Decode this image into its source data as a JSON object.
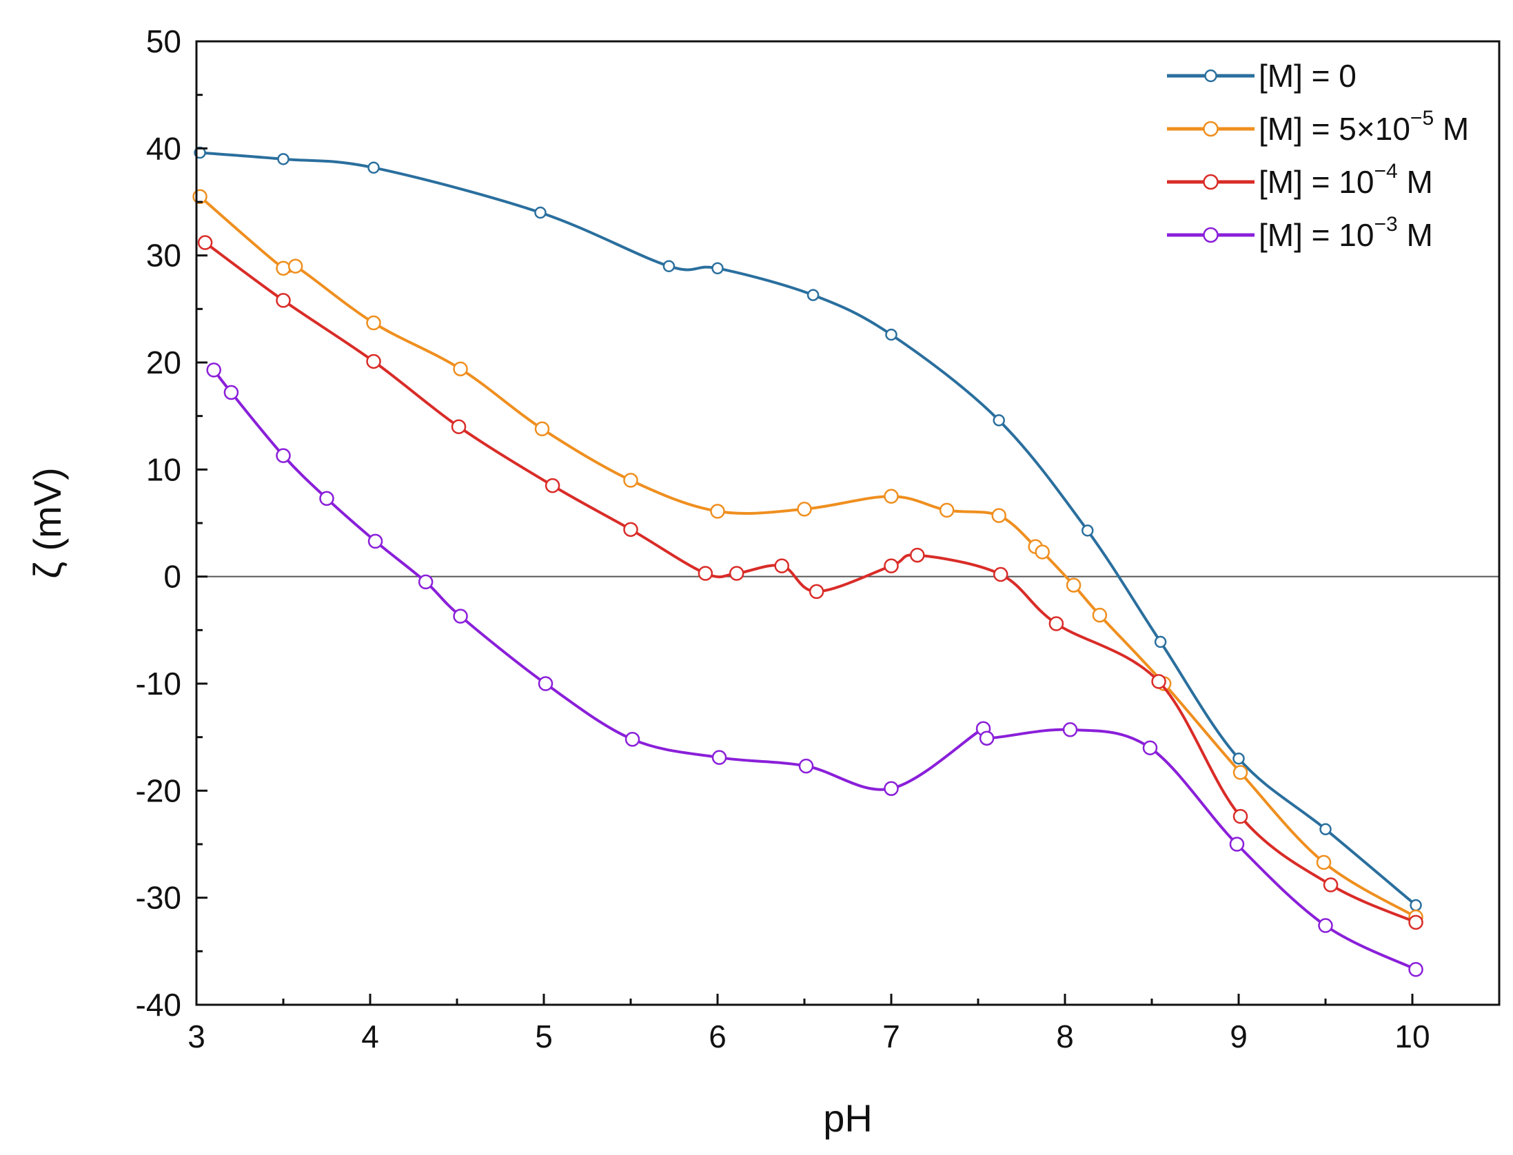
{
  "chart_data": {
    "type": "line",
    "title": "",
    "xlabel": "pH",
    "ylabel": "ζ (mV)",
    "xlim": [
      3,
      10.5
    ],
    "ylim": [
      -40,
      50
    ],
    "xticks": [
      "3",
      "4",
      "5",
      "6",
      "7",
      "8",
      "9",
      "10"
    ],
    "yticks": [
      "-40",
      "-30",
      "-20",
      "-10",
      "0",
      "10",
      "20",
      "30",
      "40",
      "50"
    ],
    "zero_line": true,
    "legend_position": "top-right",
    "series": [
      {
        "name": "[M] = 0",
        "legend": {
          "prefix": "[M] = 0",
          "exp": "",
          "suffix": ""
        },
        "color": "#2a6f9e",
        "x": [
          3.02,
          3.5,
          4.02,
          4.98,
          5.72,
          6.0,
          6.55,
          7.0,
          7.62,
          8.13,
          8.55,
          9.0,
          9.5,
          10.02
        ],
        "y": [
          39.6,
          39.0,
          38.2,
          34.0,
          29.0,
          28.8,
          26.3,
          22.6,
          14.6,
          4.3,
          -6.1,
          -17.0,
          -23.6,
          -30.7
        ]
      },
      {
        "name": "[M] = 5×10⁻⁵ M",
        "legend": {
          "prefix": "[M] = 5×10",
          "exp": "−5",
          "suffix": " M"
        },
        "color": "#ef8f1f",
        "x": [
          3.02,
          3.5,
          3.57,
          4.02,
          4.52,
          4.99,
          5.5,
          6.0,
          6.5,
          7.0,
          7.32,
          7.62,
          7.83,
          7.87,
          8.05,
          8.2,
          8.57,
          9.01,
          9.49,
          10.02
        ],
        "y": [
          35.5,
          28.8,
          29.0,
          23.7,
          19.4,
          13.8,
          9.0,
          6.1,
          6.3,
          7.5,
          6.2,
          5.7,
          2.8,
          2.3,
          -0.8,
          -3.6,
          -10.0,
          -18.3,
          -26.7,
          -31.8
        ]
      },
      {
        "name": "[M] = 10⁻⁴ M",
        "legend": {
          "prefix": "[M] = 10",
          "exp": "−4",
          "suffix": " M"
        },
        "color": "#d92c28",
        "x": [
          3.05,
          3.5,
          4.02,
          4.51,
          5.05,
          5.5,
          5.93,
          6.11,
          6.37,
          6.57,
          7.0,
          7.15,
          7.63,
          7.95,
          8.54,
          9.01,
          9.53,
          10.02
        ],
        "y": [
          31.2,
          25.8,
          20.1,
          14.0,
          8.5,
          4.4,
          0.3,
          0.3,
          1.0,
          -1.4,
          1.0,
          2.0,
          0.2,
          -4.4,
          -9.8,
          -22.4,
          -28.8,
          -32.3
        ]
      },
      {
        "name": "[M] = 10⁻³ M",
        "legend": {
          "prefix": "[M] = 10",
          "exp": "−3",
          "suffix": " M"
        },
        "color": "#8a1fd9",
        "x": [
          3.1,
          3.2,
          3.5,
          3.75,
          4.03,
          4.32,
          4.52,
          5.01,
          5.51,
          6.01,
          6.51,
          7.0,
          7.53,
          7.55,
          8.03,
          8.49,
          8.99,
          9.5,
          10.02
        ],
        "y": [
          19.3,
          17.2,
          11.3,
          7.3,
          3.3,
          -0.5,
          -3.7,
          -10.0,
          -15.2,
          -16.9,
          -17.7,
          -19.8,
          -14.2,
          -15.1,
          -14.3,
          -16.0,
          -25.0,
          -32.6,
          -36.7
        ]
      }
    ]
  }
}
